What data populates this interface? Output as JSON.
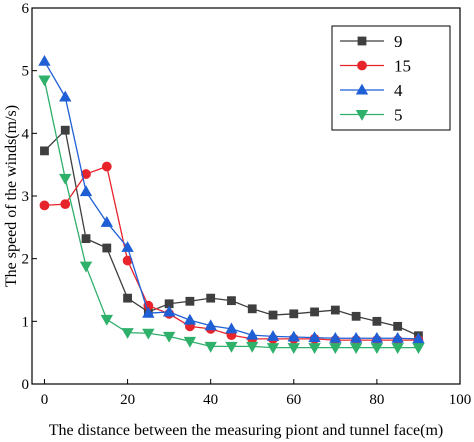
{
  "chart_data": {
    "type": "line",
    "title": "",
    "xlabel": "The distance between the measuring piont and tunnel face(m)",
    "ylabel": "The speed of the winds(m/s)",
    "xlim": [
      -3,
      100
    ],
    "ylim": [
      0,
      6
    ],
    "xticks": [
      0,
      20,
      40,
      60,
      80,
      100
    ],
    "yticks": [
      0,
      1,
      2,
      3,
      4,
      5,
      6
    ],
    "grid": false,
    "legend_position": "top-right",
    "x": [
      0,
      5,
      10,
      15,
      20,
      25,
      30,
      35,
      40,
      45,
      50,
      55,
      60,
      65,
      70,
      75,
      80,
      85,
      90
    ],
    "series": [
      {
        "name": "9",
        "marker": "square",
        "color": "#3f3f3f",
        "values": [
          3.72,
          4.05,
          2.32,
          2.17,
          1.37,
          1.15,
          1.28,
          1.32,
          1.37,
          1.33,
          1.2,
          1.1,
          1.12,
          1.15,
          1.18,
          1.08,
          1.0,
          0.92,
          0.77
        ]
      },
      {
        "name": "15",
        "marker": "circle",
        "color": "#e8242b",
        "values": [
          2.85,
          2.87,
          3.35,
          3.47,
          1.97,
          1.25,
          1.12,
          0.92,
          0.88,
          0.78,
          0.72,
          0.72,
          0.72,
          0.72,
          0.7,
          0.7,
          0.7,
          0.7,
          0.7
        ]
      },
      {
        "name": "4",
        "marker": "triangle-up",
        "color": "#1f5fd6",
        "values": [
          5.15,
          4.58,
          3.07,
          2.58,
          2.18,
          1.13,
          1.15,
          1.02,
          0.93,
          0.88,
          0.78,
          0.76,
          0.75,
          0.74,
          0.73,
          0.73,
          0.73,
          0.73,
          0.72
        ]
      },
      {
        "name": "5",
        "marker": "triangle-down",
        "color": "#2fb06b",
        "values": [
          4.85,
          3.28,
          1.88,
          1.03,
          0.82,
          0.81,
          0.76,
          0.68,
          0.6,
          0.6,
          0.6,
          0.58,
          0.58,
          0.58,
          0.58,
          0.58,
          0.58,
          0.58,
          0.58
        ]
      }
    ]
  }
}
